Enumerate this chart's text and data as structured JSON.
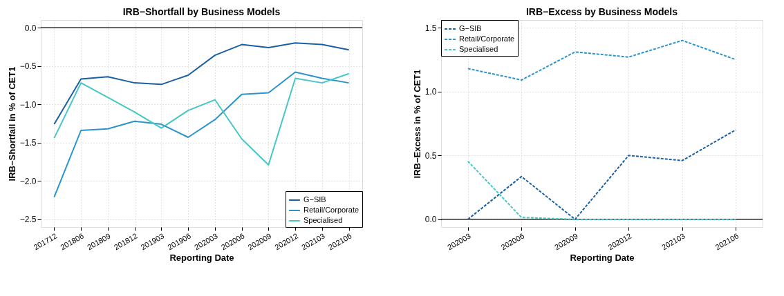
{
  "chart_data": [
    {
      "type": "line",
      "title": "IRB−Shortfall by Business Models",
      "xlabel": "Reporting Date",
      "ylabel": "IRB−Shortfall in % of CET1",
      "categories": [
        "201712",
        "201806",
        "201809",
        "201812",
        "201903",
        "201906",
        "202003",
        "202006",
        "202009",
        "202012",
        "202103",
        "202106"
      ],
      "series": [
        {
          "name": "G−SIB",
          "color": "#1a5fa3",
          "values": [
            -1.26,
            -0.67,
            -0.64,
            -0.72,
            -0.74,
            -0.62,
            -0.36,
            -0.22,
            -0.26,
            -0.2,
            -0.22,
            -0.29
          ]
        },
        {
          "name": "Retail/Corporate",
          "color": "#2b93cc",
          "values": [
            -2.21,
            -1.34,
            -1.32,
            -1.22,
            -1.26,
            -1.43,
            -1.2,
            -0.87,
            -0.85,
            -0.58,
            -0.66,
            -0.72
          ]
        },
        {
          "name": "Specialised",
          "color": "#45c6c6",
          "values": [
            -1.44,
            -0.72,
            -0.91,
            -1.1,
            -1.31,
            -1.08,
            -0.94,
            -1.45,
            -1.79,
            -0.66,
            -0.72,
            -0.6
          ]
        }
      ],
      "ylim": [
        -2.6,
        0.1
      ],
      "yticks": [
        {
          "value": -2.5,
          "label": "−2.5"
        },
        {
          "value": -2.0,
          "label": "−2.0"
        },
        {
          "value": -1.5,
          "label": "−1.5"
        },
        {
          "value": -1.0,
          "label": "−1.0"
        },
        {
          "value": -0.5,
          "label": "−0.5"
        },
        {
          "value": 0,
          "label": "0.0"
        }
      ],
      "ref_lines": [
        {
          "axis": "y",
          "value": 0,
          "color": "#000000"
        }
      ],
      "grid": true,
      "legend": "bottom right",
      "line_style": "solid"
    },
    {
      "type": "line",
      "title": "IRB−Excess by Business Models",
      "xlabel": "Reporting Date",
      "ylabel": "IRB−Excess in % of CET1",
      "categories": [
        "202003",
        "202006",
        "202009",
        "202012",
        "202103",
        "202106"
      ],
      "series": [
        {
          "name": "G−SIB",
          "color": "#1a5fa3",
          "values": [
            0.0,
            0.335,
            0.0,
            0.5,
            0.46,
            0.7
          ]
        },
        {
          "name": "Retail/Corporate",
          "color": "#2b93cc",
          "values": [
            1.18,
            1.09,
            1.31,
            1.27,
            1.4,
            1.25
          ]
        },
        {
          "name": "Specialised",
          "color": "#45c6c6",
          "values": [
            0.455,
            0.015,
            0.0,
            0.0,
            0.0,
            0.0
          ]
        }
      ],
      "ylim": [
        -0.06,
        1.56
      ],
      "yticks": [
        {
          "value": 0,
          "label": "0.0"
        },
        {
          "value": 0.5,
          "label": "0.5"
        },
        {
          "value": 1.0,
          "label": "1.0"
        },
        {
          "value": 1.5,
          "label": "1.5"
        }
      ],
      "ref_lines": [
        {
          "axis": "y",
          "value": 0,
          "color": "#000000"
        }
      ],
      "grid": true,
      "legend": "top left",
      "line_style": "dashed"
    }
  ]
}
